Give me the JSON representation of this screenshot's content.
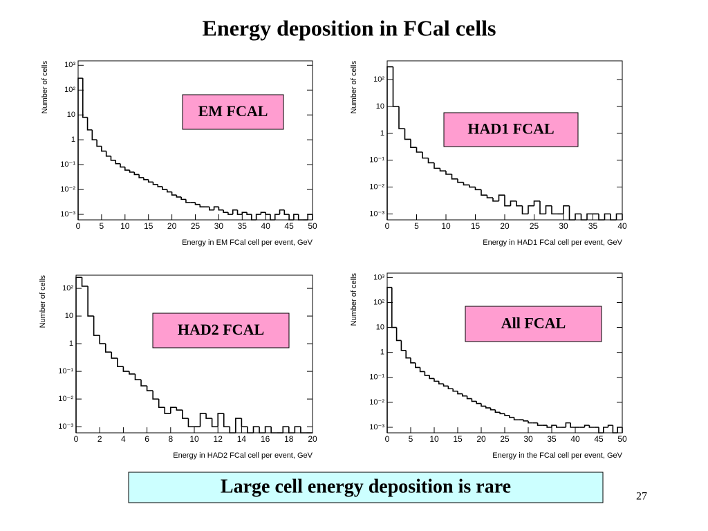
{
  "title": "Energy deposition in FCal cells",
  "footer": "Large cell energy deposition is rare",
  "page_number": "27",
  "chart_data": [
    {
      "type": "histogram",
      "annotation": "EM FCAL",
      "x_label": "Energy in EM FCal cell per event, GeV",
      "y_label": "Number of cells",
      "log_y": true,
      "color": "#000000",
      "box_color": "#ff9dd0",
      "bins": [
        0,
        1,
        2,
        3,
        4,
        5,
        6,
        7,
        8,
        9,
        10,
        11,
        12,
        13,
        14,
        15,
        16,
        17,
        18,
        19,
        20,
        21,
        22,
        23,
        24,
        25,
        26,
        27,
        28,
        29,
        30,
        31,
        32,
        33,
        34,
        35,
        36,
        37,
        38,
        39,
        40,
        41,
        42,
        43,
        44,
        45,
        46,
        47,
        48,
        49,
        50
      ],
      "values": [
        300,
        8,
        2.5,
        1.0,
        0.55,
        0.35,
        0.22,
        0.15,
        0.11,
        0.08,
        0.06,
        0.05,
        0.04,
        0.03,
        0.025,
        0.02,
        0.016,
        0.013,
        0.01,
        0.008,
        0.006,
        0.005,
        0.004,
        0.003,
        0.003,
        0.0025,
        0.002,
        0.002,
        0.0015,
        0.002,
        0.0015,
        0.0012,
        0.001,
        0.0015,
        0.001,
        0.0012,
        0.001,
        0,
        0.001,
        0.0012,
        0.001,
        0,
        0.001,
        0.0015,
        0.001,
        0,
        0.001,
        0,
        0,
        0.001
      ],
      "xlim": [
        0,
        50
      ],
      "xticks": [
        0,
        5,
        10,
        15,
        20,
        25,
        30,
        35,
        40,
        45,
        50
      ],
      "ylim": [
        0.0006,
        1500
      ],
      "yticks": [
        {
          "value": 0.001,
          "label": "10⁻³"
        },
        {
          "value": 0.01,
          "label": "10⁻²"
        },
        {
          "value": 0.1,
          "label": "10⁻¹"
        },
        1,
        10,
        {
          "value": 100,
          "label": "10²"
        },
        {
          "value": 1000,
          "label": "10³"
        }
      ]
    },
    {
      "type": "histogram",
      "annotation": "HAD1 FCAL",
      "x_label": "Energy in HAD1 FCal cell per event, GeV",
      "y_label": "Number of cells",
      "log_y": true,
      "color": "#000000",
      "box_color": "#ff9dd0",
      "bins": [
        0,
        1,
        2,
        3,
        4,
        5,
        6,
        7,
        8,
        9,
        10,
        11,
        12,
        13,
        14,
        15,
        16,
        17,
        18,
        19,
        20,
        21,
        22,
        23,
        24,
        25,
        26,
        27,
        28,
        29,
        30,
        31,
        32,
        33,
        34,
        35,
        36,
        37,
        38,
        39,
        40
      ],
      "values": [
        300,
        10,
        1.5,
        0.6,
        0.3,
        0.2,
        0.12,
        0.08,
        0.05,
        0.04,
        0.03,
        0.02,
        0.015,
        0.012,
        0.01,
        0.008,
        0.005,
        0.004,
        0.003,
        0.005,
        0.002,
        0.003,
        0.002,
        0.001,
        0.002,
        0.003,
        0.001,
        0.002,
        0.001,
        0.001,
        0.002,
        0,
        0.001,
        0,
        0.001,
        0.001,
        0,
        0.001,
        0,
        0.001
      ],
      "xlim": [
        0,
        40
      ],
      "xticks": [
        0,
        5,
        10,
        15,
        20,
        25,
        30,
        35,
        40
      ],
      "ylim": [
        0.0006,
        500
      ],
      "yticks": [
        {
          "value": 0.001,
          "label": "10⁻³"
        },
        {
          "value": 0.01,
          "label": "10⁻²"
        },
        {
          "value": 0.1,
          "label": "10⁻¹"
        },
        1,
        10,
        {
          "value": 100,
          "label": "10²"
        }
      ]
    },
    {
      "type": "histogram",
      "annotation": "HAD2 FCAL",
      "x_label": "Energy in HAD2 FCal cell per event, GeV",
      "y_label": "Number of cells",
      "log_y": true,
      "color": "#000000",
      "box_color": "#ff9dd0",
      "bins": [
        0,
        0.5,
        1,
        1.5,
        2,
        2.5,
        3,
        3.5,
        4,
        4.5,
        5,
        5.5,
        6,
        6.5,
        7,
        7.5,
        8,
        8.5,
        9,
        9.5,
        10,
        10.5,
        11,
        11.5,
        12,
        12.5,
        13,
        13.5,
        14,
        14.5,
        15,
        15.5,
        16,
        16.5,
        17,
        17.5,
        18,
        18.5,
        19,
        19.5,
        20
      ],
      "values": [
        250,
        120,
        10,
        2,
        1,
        0.5,
        0.3,
        0.15,
        0.1,
        0.08,
        0.05,
        0.03,
        0.02,
        0.01,
        0.005,
        0.003,
        0.005,
        0.004,
        0.002,
        0.001,
        0.001,
        0.003,
        0.002,
        0.001,
        0.003,
        0.001,
        0,
        0.002,
        0.001,
        0,
        0.001,
        0,
        0.001,
        0,
        0,
        0.001,
        0,
        0.001,
        0,
        0
      ],
      "xlim": [
        0,
        20
      ],
      "xticks": [
        0,
        2,
        4,
        6,
        8,
        10,
        12,
        14,
        16,
        18,
        20
      ],
      "ylim": [
        0.0006,
        300
      ],
      "yticks": [
        {
          "value": 0.001,
          "label": "10⁻³"
        },
        {
          "value": 0.01,
          "label": "10⁻²"
        },
        {
          "value": 0.1,
          "label": "10⁻¹"
        },
        1,
        10,
        {
          "value": 100,
          "label": "10²"
        }
      ]
    },
    {
      "type": "histogram",
      "annotation": "All FCAL",
      "x_label": "Energy in the FCal cell per event, GeV",
      "y_label": "Number of cells",
      "log_y": true,
      "color": "#000000",
      "box_color": "#ff9dd0",
      "bins": [
        0,
        1,
        2,
        3,
        4,
        5,
        6,
        7,
        8,
        9,
        10,
        11,
        12,
        13,
        14,
        15,
        16,
        17,
        18,
        19,
        20,
        21,
        22,
        23,
        24,
        25,
        26,
        27,
        28,
        29,
        30,
        31,
        32,
        33,
        34,
        35,
        36,
        37,
        38,
        39,
        40,
        41,
        42,
        43,
        44,
        45,
        46,
        47,
        48,
        49,
        50
      ],
      "values": [
        400,
        10,
        3,
        1.2,
        0.6,
        0.38,
        0.25,
        0.17,
        0.12,
        0.09,
        0.07,
        0.055,
        0.045,
        0.035,
        0.028,
        0.022,
        0.018,
        0.014,
        0.011,
        0.009,
        0.007,
        0.006,
        0.005,
        0.004,
        0.0035,
        0.003,
        0.0025,
        0.002,
        0.002,
        0.0018,
        0.0015,
        0.0015,
        0.0012,
        0.0012,
        0.001,
        0.0012,
        0.001,
        0.001,
        0.0015,
        0.001,
        0.001,
        0.001,
        0.0012,
        0.001,
        0.001,
        0,
        0.001,
        0.0012,
        0,
        0.001
      ],
      "xlim": [
        0,
        50
      ],
      "xticks": [
        0,
        5,
        10,
        15,
        20,
        25,
        30,
        35,
        40,
        45,
        50
      ],
      "ylim": [
        0.0006,
        1500
      ],
      "yticks": [
        {
          "value": 0.001,
          "label": "10⁻³"
        },
        {
          "value": 0.01,
          "label": "10⁻²"
        },
        {
          "value": 0.1,
          "label": "10⁻¹"
        },
        1,
        10,
        {
          "value": 100,
          "label": "10²"
        },
        {
          "value": 1000,
          "label": "10³"
        }
      ]
    }
  ]
}
